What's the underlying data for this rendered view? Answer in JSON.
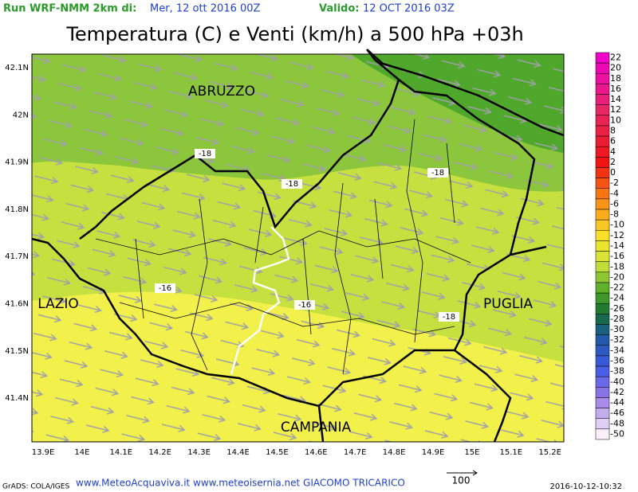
{
  "header": {
    "run_label": "Run WRF-NMM 2km di:",
    "run_date": "Mer, 12 ott 2016 00Z",
    "valid_label": "Valido:",
    "valid_date": "12 OCT 2016 03Z"
  },
  "title": "Temperatura (C) e Venti (km/h) a 500 hPa +03h",
  "axes": {
    "lon_labels": [
      "13.9E",
      "14E",
      "14.1E",
      "14.2E",
      "14.3E",
      "14.4E",
      "14.5E",
      "14.6E",
      "14.7E",
      "14.8E",
      "14.9E",
      "15E",
      "15.1E",
      "15.2E"
    ],
    "lat_labels": [
      "42.1N",
      "42N",
      "41.9N",
      "41.8N",
      "41.7N",
      "41.6N",
      "41.5N",
      "41.4N"
    ]
  },
  "regions": [
    "ABRUZZO",
    "LAZIO",
    "PUGLIA",
    "CAMPANIA"
  ],
  "contour_labels": [
    "-18",
    "-18",
    "-18",
    "-16",
    "-16",
    "-18"
  ],
  "colorbar": {
    "labels": [
      "22",
      "20",
      "18",
      "16",
      "14",
      "12",
      "10",
      "8",
      "6",
      "4",
      "2",
      "0",
      "-2",
      "-4",
      "-6",
      "-8",
      "-10",
      "-12",
      "-14",
      "-16",
      "-18",
      "-20",
      "-22",
      "-24",
      "-26",
      "-28",
      "-30",
      "-32",
      "-34",
      "-36",
      "-38",
      "-40",
      "-42",
      "-44",
      "-46",
      "-48",
      "-50"
    ]
  },
  "footer": {
    "software": "GrADS: COLA/IGES",
    "credits": "www.MeteoAcquaviva.it www.meteoisernia.net GIACOMO TRICARICO",
    "vector_ref": "100",
    "timestamp": "2016-10-12-10:32"
  }
}
